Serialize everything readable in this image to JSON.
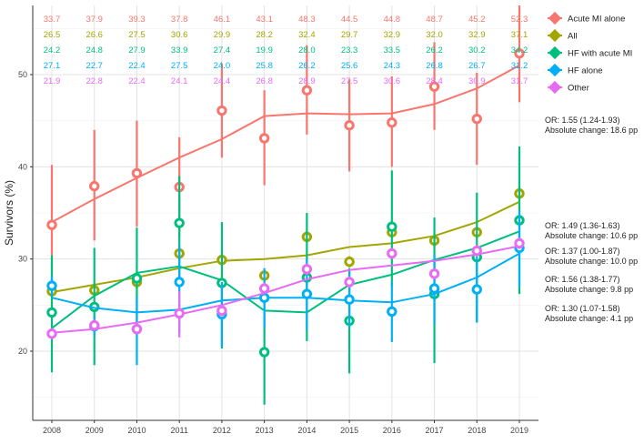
{
  "chart_data": {
    "type": "line",
    "title": "",
    "xlabel": "",
    "ylabel": "Survivors (%)",
    "x": [
      2008,
      2009,
      2010,
      2011,
      2012,
      2013,
      2014,
      2015,
      2016,
      2017,
      2018,
      2019
    ],
    "ylim": [
      12.5,
      57.5
    ],
    "yticks": [
      20,
      30,
      40,
      50,
      60
    ],
    "grid": true,
    "legend_position": "right",
    "series": [
      {
        "name": "Acute MI alone",
        "color": "#F8766D",
        "values": [
          33.7,
          37.9,
          39.3,
          37.8,
          46.1,
          43.1,
          48.3,
          44.5,
          44.8,
          48.7,
          45.2,
          52.3
        ],
        "labels": [
          "33.7",
          "37.9",
          "39.3",
          "37.8",
          "46.1",
          "43.1",
          "48.3",
          "44.5",
          "44.8",
          "48.7",
          "45.2",
          "52.3"
        ],
        "ci_low": [
          27.5,
          32.0,
          33.5,
          32.5,
          41.0,
          38.0,
          43.5,
          39.5,
          40.0,
          44.0,
          40.2,
          47.0
        ],
        "ci_high": [
          40.2,
          44.0,
          45.0,
          43.2,
          51.2,
          48.3,
          53.2,
          49.5,
          49.8,
          53.5,
          50.2,
          57.5
        ],
        "smooth": [
          34.0,
          36.5,
          38.8,
          41.0,
          43.0,
          45.5,
          45.8,
          45.7,
          45.8,
          46.8,
          48.5,
          51.0
        ]
      },
      {
        "name": "All",
        "color": "#A3A500",
        "values": [
          26.5,
          26.6,
          27.5,
          30.6,
          29.9,
          28.2,
          32.4,
          29.7,
          32.9,
          32.0,
          32.9,
          37.1
        ],
        "labels": [
          "26.5",
          "26.6",
          "27.5",
          "30.6",
          "29.9",
          "28.2",
          "32.4",
          "29.7",
          "32.9",
          "32.0",
          "32.9",
          "37.1"
        ],
        "ci_low": [
          25.8,
          26.0,
          26.8,
          29.9,
          29.3,
          27.6,
          31.8,
          29.1,
          32.3,
          31.3,
          32.3,
          36.3
        ],
        "ci_high": [
          27.2,
          27.2,
          28.2,
          31.3,
          30.5,
          28.8,
          33.0,
          30.3,
          33.5,
          32.7,
          33.5,
          37.9
        ],
        "smooth": [
          26.4,
          27.2,
          28.0,
          29.0,
          29.8,
          30.0,
          30.4,
          31.3,
          31.7,
          32.5,
          34.0,
          36.2
        ]
      },
      {
        "name": "HF with acute MI",
        "color": "#00BF7D",
        "values": [
          24.2,
          24.8,
          27.9,
          33.9,
          27.4,
          19.9,
          28.0,
          23.3,
          33.5,
          26.2,
          30.2,
          34.2
        ],
        "labels": [
          "24.2",
          "24.8",
          "27.9",
          "33.9",
          "27.4",
          "19.9",
          "28.0",
          "23.3",
          "33.5",
          "26.2",
          "30.2",
          "34.2"
        ],
        "ci_low": [
          17.7,
          18.5,
          22.0,
          27.5,
          20.3,
          14.2,
          21.1,
          17.6,
          27.0,
          18.7,
          23.2,
          26.2
        ],
        "ci_high": [
          30.4,
          31.2,
          33.4,
          39.0,
          34.0,
          26.6,
          35.0,
          29.0,
          39.6,
          34.5,
          37.2,
          42.2
        ],
        "smooth": [
          22.5,
          26.0,
          28.5,
          29.2,
          27.7,
          24.4,
          24.2,
          27.2,
          28.3,
          29.9,
          31.2,
          33.0
        ]
      },
      {
        "name": "HF alone",
        "color": "#00B0F6",
        "values": [
          27.1,
          22.7,
          22.4,
          27.5,
          24.0,
          25.8,
          26.2,
          25.6,
          24.3,
          26.8,
          26.7,
          31.2
        ],
        "labels": [
          "27.1",
          "22.7",
          "22.4",
          "27.5",
          "24.0",
          "25.8",
          "26.2",
          "25.6",
          "24.3",
          "26.8",
          "26.7",
          "31.2"
        ],
        "ci_low": [
          26.0,
          21.6,
          18.5,
          22.0,
          20.5,
          22.5,
          22.3,
          22.5,
          21.0,
          23.0,
          23.1,
          27.0
        ],
        "ci_high": [
          28.2,
          23.8,
          26.0,
          31.5,
          27.5,
          29.0,
          30.0,
          28.7,
          27.5,
          30.5,
          30.3,
          35.2
        ],
        "smooth": [
          25.8,
          24.7,
          24.2,
          24.5,
          25.5,
          25.8,
          25.8,
          25.5,
          25.3,
          26.2,
          28.0,
          30.6
        ]
      },
      {
        "name": "Other",
        "color": "#E76BF3",
        "values": [
          21.9,
          22.8,
          22.4,
          24.1,
          24.4,
          26.8,
          28.9,
          27.5,
          30.6,
          28.4,
          30.9,
          31.7
        ],
        "labels": [
          "21.9",
          "22.8",
          "22.4",
          "24.1",
          "24.4",
          "26.8",
          "28.9",
          "27.5",
          "30.6",
          "28.4",
          "30.9",
          "31.7"
        ],
        "ci_low": [
          21.3,
          22.2,
          21.8,
          21.5,
          23.8,
          26.2,
          28.3,
          26.9,
          30.0,
          27.8,
          30.3,
          31.1
        ],
        "ci_high": [
          22.5,
          23.4,
          23.0,
          26.5,
          25.0,
          27.4,
          29.5,
          28.1,
          31.2,
          29.0,
          31.5,
          32.3
        ],
        "smooth": [
          22.0,
          22.4,
          23.1,
          24.0,
          25.0,
          26.3,
          27.8,
          28.8,
          29.3,
          29.8,
          30.5,
          31.4
        ]
      }
    ],
    "annotations": [
      {
        "series": "Acute MI alone",
        "lines": [
          "OR: 1.55 (1.24-1.93)",
          "Absolute change: 18.6 pp"
        ]
      },
      {
        "series": "All",
        "lines": [
          "OR: 1.49 (1.36-1.63)",
          "Absolute change: 10.6 pp"
        ]
      },
      {
        "series": "HF with acute MI",
        "lines": [
          "OR: 1.37 (1.00-1.87)",
          "Absolute change: 10.0 pp"
        ]
      },
      {
        "series": "Other",
        "lines": [
          "OR: 1.56 (1.38-1.77)",
          "Absolute change: 9.8 pp"
        ]
      },
      {
        "series": "HF alone",
        "lines": [
          "OR: 1.30 (1.07-1.58)",
          "Absolute change: 4.1 pp"
        ]
      }
    ]
  }
}
